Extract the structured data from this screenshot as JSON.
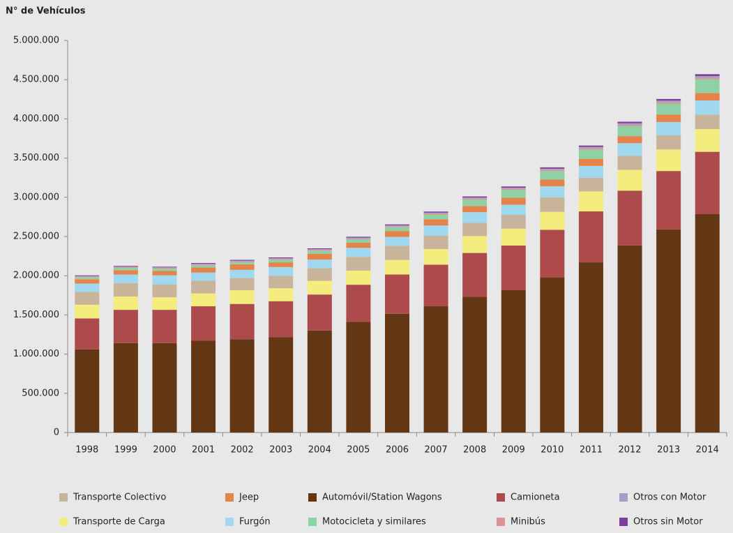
{
  "chart_data": {
    "type": "stacked_bar",
    "y_label": "N° de Vehículos",
    "categories": [
      "1998",
      "1999",
      "2000",
      "2001",
      "2002",
      "2003",
      "2004",
      "2005",
      "2006",
      "2007",
      "2008",
      "2009",
      "2010",
      "2011",
      "2012",
      "2013",
      "2014"
    ],
    "series": [
      {
        "name": "Automóvil/Station Wagons",
        "color": "#633713",
        "values": [
          1060000,
          1140000,
          1140000,
          1170000,
          1190000,
          1215000,
          1300000,
          1410000,
          1515000,
          1610000,
          1730000,
          1815000,
          1975000,
          2170000,
          2385000,
          2590000,
          2785000
        ]
      },
      {
        "name": "Camioneta",
        "color": "#ad4a4c",
        "values": [
          395000,
          425000,
          425000,
          440000,
          450000,
          460000,
          460000,
          475000,
          500000,
          530000,
          560000,
          570000,
          610000,
          650000,
          700000,
          745000,
          795000
        ]
      },
      {
        "name": "Transporte de Carga",
        "color": "#f4ec7c",
        "values": [
          175000,
          170000,
          160000,
          165000,
          175000,
          165000,
          175000,
          180000,
          185000,
          200000,
          215000,
          215000,
          230000,
          255000,
          265000,
          275000,
          290000
        ]
      },
      {
        "name": "Transporte Colectivo",
        "color": "#c8b49a",
        "values": [
          165000,
          170000,
          165000,
          160000,
          155000,
          160000,
          160000,
          175000,
          180000,
          170000,
          170000,
          175000,
          185000,
          175000,
          180000,
          180000,
          185000
        ]
      },
      {
        "name": "Furgón",
        "color": "#9fd8ef",
        "values": [
          105000,
          110000,
          115000,
          105000,
          105000,
          110000,
          110000,
          115000,
          115000,
          130000,
          135000,
          130000,
          140000,
          150000,
          160000,
          170000,
          180000
        ]
      },
      {
        "name": "Jeep",
        "color": "#e5844a",
        "values": [
          55000,
          55000,
          55000,
          65000,
          70000,
          60000,
          75000,
          65000,
          75000,
          80000,
          80000,
          90000,
          85000,
          90000,
          90000,
          95000,
          95000
        ]
      },
      {
        "name": "Motocicleta y similares",
        "color": "#8fd0a4",
        "values": [
          25000,
          30000,
          30000,
          30000,
          30000,
          35000,
          40000,
          45000,
          50000,
          60000,
          80000,
          100000,
          110000,
          120000,
          130000,
          140000,
          175000
        ]
      },
      {
        "name": "Minibús",
        "color": "#d99493",
        "values": [
          10000,
          10000,
          10000,
          10000,
          10000,
          10000,
          10000,
          12000,
          12000,
          14000,
          14000,
          15000,
          16000,
          17000,
          18000,
          19000,
          20000
        ]
      },
      {
        "name": "Otros con Motor",
        "color": "#a89cc8",
        "values": [
          7000,
          7000,
          7000,
          8000,
          8000,
          8000,
          9000,
          9000,
          10000,
          10000,
          12000,
          12000,
          14000,
          15000,
          16000,
          18000,
          20000
        ]
      },
      {
        "name": "Otros sin Motor",
        "color": "#7b3f9c",
        "values": [
          8000,
          8000,
          8000,
          9000,
          9000,
          10000,
          10000,
          11000,
          12000,
          14000,
          15000,
          16000,
          17000,
          18000,
          20000,
          22000,
          25000
        ]
      }
    ],
    "ylim": [
      0,
      5000000
    ],
    "yticks": [
      0,
      {
        "value": 500000,
        "label": "500.000"
      },
      {
        "value": 1000000,
        "label": "1.000.000"
      },
      {
        "value": 1500000,
        "label": "1.500.000"
      },
      {
        "value": 2000000,
        "label": "2.000.000"
      },
      {
        "value": 2500000,
        "label": "2.500.000"
      },
      {
        "value": 3000000,
        "label": "3.000.000"
      },
      {
        "value": 3500000,
        "label": "3.500.000"
      },
      {
        "value": 4000000,
        "label": "4.000.000"
      },
      {
        "value": 4500000,
        "label": "4.500.000"
      },
      {
        "value": 5000000,
        "label": "5.000.000"
      }
    ],
    "legend": "bottom"
  }
}
